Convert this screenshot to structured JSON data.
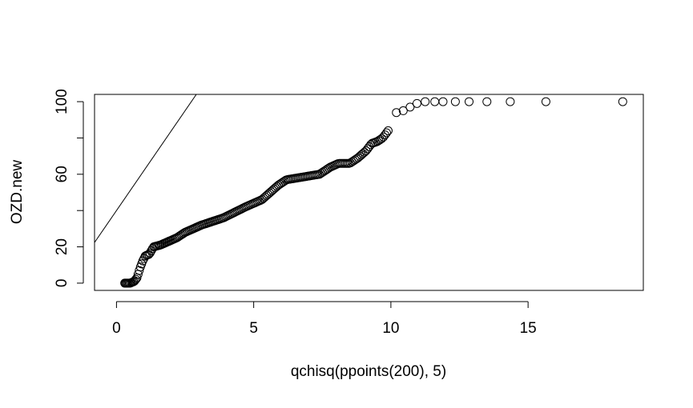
{
  "chart_data": {
    "type": "scatter",
    "title": "",
    "xlabel": "qchisq(ppoints(200), 5)",
    "ylabel": "OZD.new",
    "xlim": [
      -0.8,
      19.2
    ],
    "ylim": [
      -4,
      104
    ],
    "x_ticks": [
      0,
      5,
      10,
      15
    ],
    "y_ticks": [
      0,
      20,
      60,
      100
    ],
    "x_tick_labels": [
      "0",
      "5",
      "10",
      "15"
    ],
    "y_tick_labels": [
      "0",
      "20",
      "60",
      "100"
    ],
    "y_minor_ticks": [
      40,
      80
    ],
    "grid": false,
    "legend": "none",
    "reference_line": {
      "intercept": 40,
      "slope": 22
    },
    "points_anchor": [
      [
        0.3,
        0
      ],
      [
        0.5,
        0
      ],
      [
        0.65,
        1
      ],
      [
        0.75,
        3
      ],
      [
        0.85,
        8
      ],
      [
        0.95,
        12
      ],
      [
        1.05,
        15
      ],
      [
        1.2,
        16
      ],
      [
        1.35,
        20
      ],
      [
        1.6,
        21
      ],
      [
        1.9,
        23
      ],
      [
        2.2,
        25
      ],
      [
        2.5,
        28
      ],
      [
        2.8,
        30
      ],
      [
        3.1,
        32
      ],
      [
        3.5,
        34
      ],
      [
        3.9,
        36
      ],
      [
        4.3,
        39
      ],
      [
        4.7,
        42
      ],
      [
        5.0,
        44
      ],
      [
        5.3,
        46
      ],
      [
        5.6,
        50
      ],
      [
        5.9,
        54
      ],
      [
        6.2,
        57
      ],
      [
        6.6,
        58
      ],
      [
        7.0,
        59
      ],
      [
        7.4,
        60
      ],
      [
        7.8,
        64
      ],
      [
        8.1,
        66
      ],
      [
        8.5,
        66
      ],
      [
        8.8,
        69
      ],
      [
        9.1,
        73
      ],
      [
        9.3,
        77
      ],
      [
        9.5,
        78
      ],
      [
        9.7,
        80
      ],
      [
        9.9,
        84
      ],
      [
        10.2,
        94
      ],
      [
        10.45,
        95
      ],
      [
        10.7,
        97
      ],
      [
        10.95,
        99
      ],
      [
        11.25,
        100
      ],
      [
        11.6,
        100
      ],
      [
        11.9,
        100
      ],
      [
        12.35,
        100
      ],
      [
        12.85,
        100
      ],
      [
        13.5,
        100
      ],
      [
        14.35,
        100
      ],
      [
        15.65,
        100
      ],
      [
        18.45,
        100
      ]
    ],
    "n_points": 200,
    "tail_x": [
      10.2,
      10.45,
      10.7,
      10.95,
      11.25,
      11.6,
      11.9,
      12.35,
      12.85,
      13.5,
      14.35,
      15.65,
      18.45
    ]
  }
}
